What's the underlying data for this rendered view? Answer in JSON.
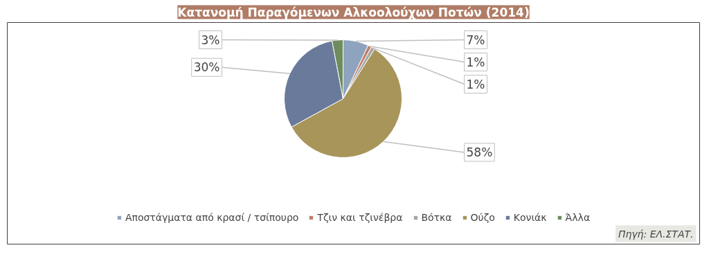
{
  "chart_data": {
    "type": "pie",
    "title": "Κατανομή Παραγόμενων Αλκοολούχων Ποτών (2014)",
    "categories": [
      "Αποστάγματα από κρασί / τσίπουρο",
      "Τζιν και τζινέβρα",
      "Βότκα",
      "Ούζο",
      "Κονιάκ",
      "Άλλα"
    ],
    "values": [
      7,
      1,
      1,
      58,
      30,
      3
    ],
    "colors": [
      "#8ea3bd",
      "#c0806a",
      "#a6a6a6",
      "#a8955a",
      "#6a7a9a",
      "#6e8c5e"
    ],
    "value_labels": [
      "7%",
      "1%",
      "1%",
      "58%",
      "30%",
      "3%"
    ],
    "legend": "bottom",
    "annotations": [
      "Πηγή: ΕΛ.ΣΤΑΤ."
    ]
  }
}
